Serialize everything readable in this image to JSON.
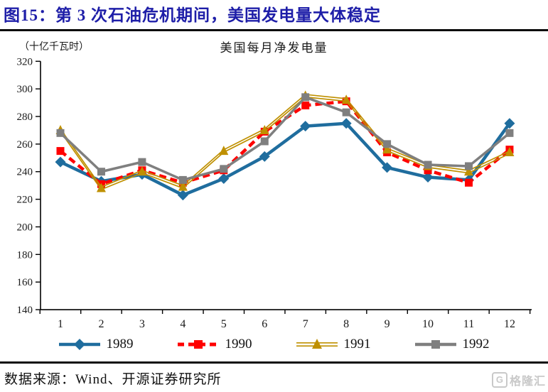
{
  "header": {
    "title": "图15：第 3 次石油危机期间，美国发电量大体稳定"
  },
  "chart_data": {
    "type": "line",
    "title": "美国每月净发电量",
    "unit_label": "（十亿千瓦时）",
    "x": [
      1,
      2,
      3,
      4,
      5,
      6,
      7,
      8,
      9,
      10,
      11,
      12
    ],
    "ylim": [
      140,
      320
    ],
    "ytick_step": 20,
    "grid": false,
    "legend_position": "bottom",
    "series": [
      {
        "name": "1989",
        "color": "#1F6D9E",
        "style": "solid",
        "marker": "diamond",
        "values": [
          247,
          233,
          238,
          223,
          235,
          251,
          273,
          275,
          243,
          236,
          234,
          275
        ]
      },
      {
        "name": "1990",
        "color": "#FF0000",
        "style": "dashed",
        "marker": "square",
        "values": [
          255,
          231,
          241,
          232,
          241,
          269,
          288,
          291,
          254,
          241,
          232,
          256
        ]
      },
      {
        "name": "1991",
        "color": "#BF9000",
        "style": "double-thin",
        "marker": "triangle",
        "values": [
          270,
          228,
          240,
          229,
          255,
          270,
          295,
          292,
          256,
          244,
          240,
          254
        ]
      },
      {
        "name": "1992",
        "color": "#7F7F7F",
        "style": "solid",
        "marker": "square",
        "values": [
          268,
          240,
          247,
          234,
          242,
          262,
          294,
          283,
          260,
          245,
          244,
          268
        ]
      }
    ]
  },
  "footer": {
    "source": "数据来源：Wind、开源证券研究所",
    "logo_letter": "G",
    "logo_text": "格隆汇"
  }
}
